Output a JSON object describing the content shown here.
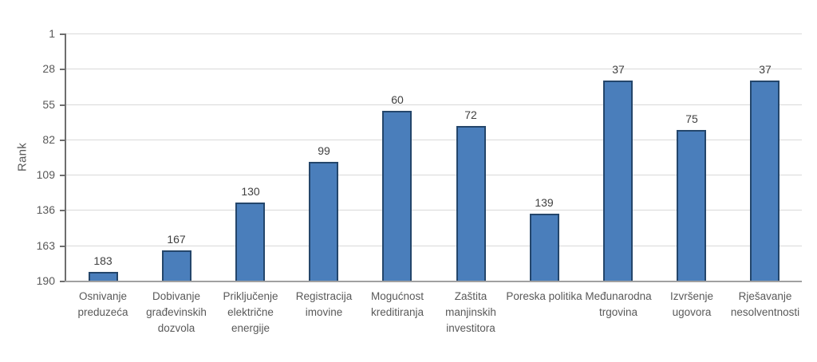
{
  "chart_data": {
    "type": "bar",
    "title": "",
    "xlabel": "",
    "ylabel": "Rank",
    "categories": [
      "Osnivanje preduzeća",
      "Dobivanje građevinskih dozvola",
      "Priključenje električne energije",
      "Registracija imovine",
      "Mogućnost kreditiranja",
      "Zaštita manjinskih investitora",
      "Poreska politika",
      "Međunarodna trgovina",
      "Izvršenje ugovora",
      "Rješavanje nesolventnosti"
    ],
    "values": [
      183,
      167,
      130,
      99,
      60,
      72,
      139,
      37,
      75,
      37
    ],
    "value_labels": [
      "183",
      "167",
      "130",
      "99",
      "60",
      "72",
      "139",
      "37",
      "75",
      "37"
    ],
    "ylim": [
      1,
      190
    ],
    "yticks": [
      1,
      28,
      55,
      82,
      109,
      136,
      163,
      190
    ],
    "ytick_labels": [
      "1",
      "28",
      "55",
      "82",
      "109",
      "136",
      "163",
      "190"
    ],
    "y_axis_inverted": true,
    "grid": "horizontal",
    "legend": "none",
    "colors": {
      "bar_fill": "#4a7ebb",
      "bar_border": "#24466b",
      "gridline": "#d9d9d9",
      "y_axis_line": "#6e6e6e",
      "x_axis_line": "#a0a0a0",
      "tick_label": "#595959",
      "value_label": "#404040",
      "background": "#ffffff"
    }
  }
}
